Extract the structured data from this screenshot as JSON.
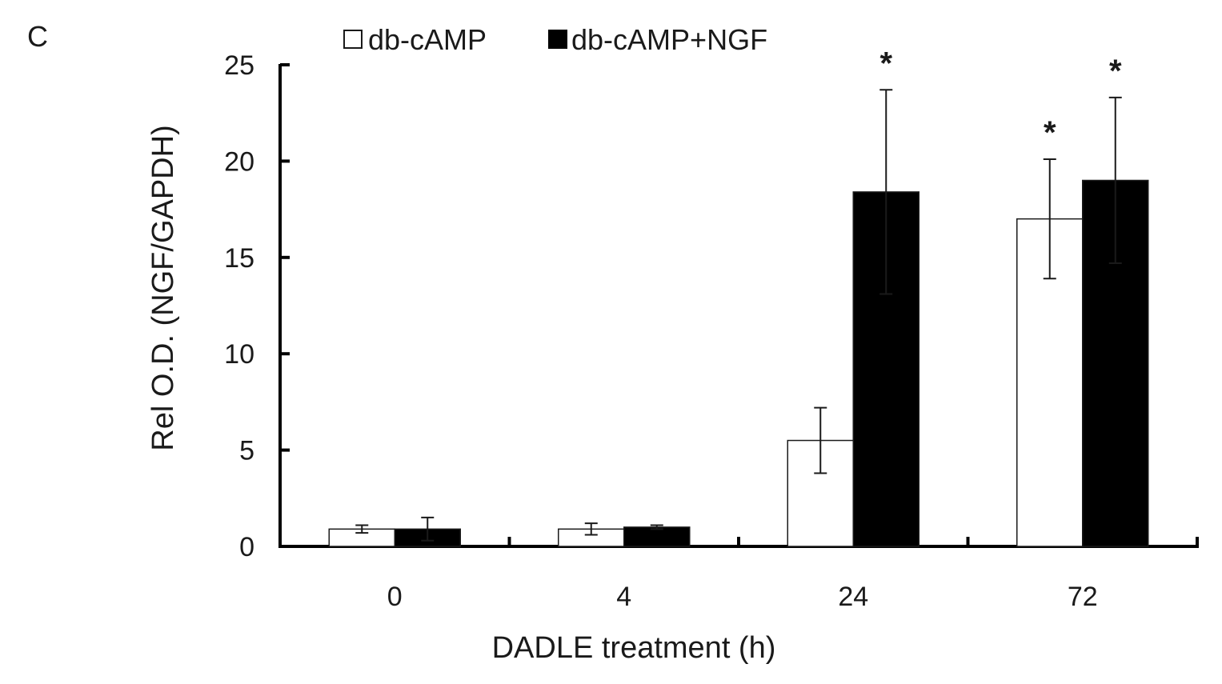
{
  "panel_label": "C",
  "chart_data": {
    "type": "bar",
    "categories": [
      "0",
      "4",
      "24",
      "72"
    ],
    "xlabel": "DADLE treatment (h)",
    "ylabel": "Rel O.D. (NGF/GAPDH)",
    "ylim": [
      0,
      25
    ],
    "yticks": [
      0,
      5,
      10,
      15,
      20,
      25
    ],
    "grid": false,
    "legend_position": "top",
    "series": [
      {
        "name": "db-cAMP",
        "color": "#ffffff",
        "values": [
          0.9,
          0.9,
          5.5,
          17.0
        ],
        "errors": [
          0.2,
          0.3,
          1.7,
          3.1
        ],
        "significant": [
          false,
          false,
          false,
          true
        ]
      },
      {
        "name": "db-cAMP+NGF",
        "color": "#000000",
        "values": [
          0.9,
          1.0,
          18.4,
          19.0
        ],
        "errors": [
          0.6,
          0.1,
          5.3,
          4.3
        ],
        "significant": [
          false,
          false,
          true,
          true
        ]
      }
    ],
    "significance_marker": "*"
  }
}
